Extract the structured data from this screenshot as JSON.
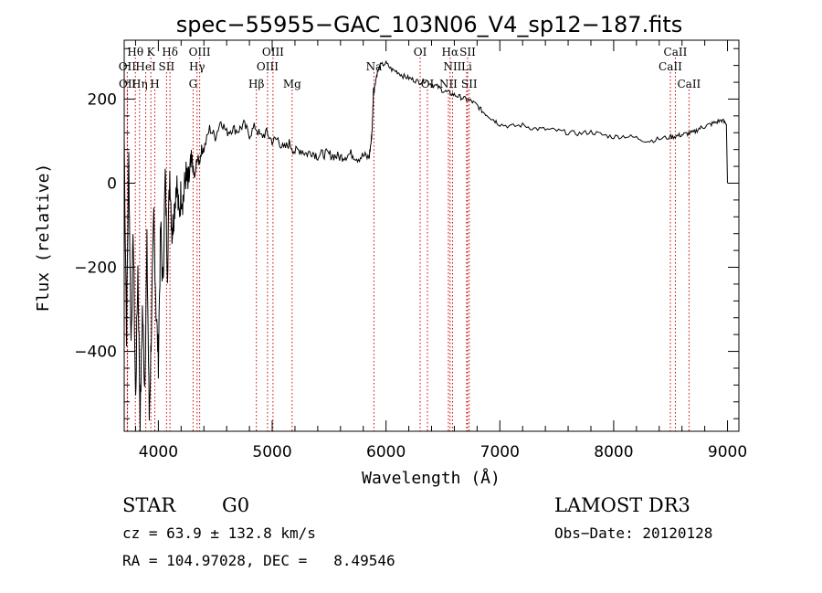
{
  "chart_data": {
    "type": "line",
    "title": "spec−55955−GAC_103N06_V4_sp12−187.fits",
    "xlabel": "Wavelength (Å)",
    "ylabel": "Flux (relative)",
    "xlim": [
      3700,
      9100
    ],
    "ylim": [
      -590,
      340
    ],
    "x_ticks": [
      4000,
      5000,
      6000,
      7000,
      8000,
      9000
    ],
    "x_tick_labels": [
      "4000",
      "5000",
      "6000",
      "7000",
      "8000",
      "9000"
    ],
    "y_ticks": [
      -400,
      -200,
      0,
      200
    ],
    "y_tick_labels": [
      "−400",
      "−200",
      "0",
      "200"
    ],
    "series": [
      {
        "name": "flux",
        "x": [
          3700,
          3720,
          3740,
          3760,
          3780,
          3800,
          3820,
          3840,
          3860,
          3880,
          3900,
          3920,
          3940,
          3960,
          3980,
          4000,
          4020,
          4040,
          4060,
          4080,
          4100,
          4120,
          4140,
          4160,
          4180,
          4200,
          4220,
          4240,
          4260,
          4280,
          4300,
          4320,
          4340,
          4360,
          4380,
          4400,
          4450,
          4500,
          4550,
          4600,
          4650,
          4700,
          4750,
          4800,
          4850,
          4900,
          4950,
          5000,
          5050,
          5100,
          5150,
          5200,
          5250,
          5300,
          5350,
          5400,
          5450,
          5500,
          5550,
          5600,
          5650,
          5700,
          5750,
          5800,
          5850,
          5870,
          5880,
          5890,
          5900,
          5920,
          5950,
          6000,
          6050,
          6100,
          6150,
          6200,
          6250,
          6300,
          6350,
          6400,
          6450,
          6500,
          6550,
          6600,
          6650,
          6700,
          6750,
          6800,
          6850,
          6900,
          6950,
          7000,
          7100,
          7200,
          7300,
          7400,
          7500,
          7600,
          7700,
          7800,
          7900,
          8000,
          8100,
          8200,
          8300,
          8400,
          8500,
          8550,
          8600,
          8650,
          8700,
          8750,
          8800,
          8850,
          8900,
          8950,
          8990,
          9000
        ],
        "y": [
          110,
          -350,
          60,
          -380,
          -120,
          -520,
          -200,
          -560,
          -300,
          -480,
          -150,
          -560,
          -330,
          -80,
          -300,
          -420,
          -100,
          -250,
          20,
          -200,
          30,
          -120,
          -60,
          10,
          -80,
          -20,
          -40,
          20,
          -10,
          30,
          40,
          10,
          60,
          50,
          80,
          80,
          130,
          110,
          150,
          120,
          130,
          125,
          140,
          115,
          135,
          110,
          120,
          100,
          105,
          80,
          95,
          75,
          80,
          70,
          75,
          65,
          70,
          68,
          65,
          62,
          66,
          70,
          60,
          65,
          60,
          100,
          140,
          220,
          230,
          260,
          280,
          285,
          270,
          265,
          255,
          250,
          245,
          240,
          245,
          235,
          230,
          220,
          215,
          210,
          205,
          200,
          195,
          185,
          170,
          160,
          150,
          140,
          135,
          138,
          130,
          128,
          125,
          120,
          118,
          122,
          115,
          110,
          112,
          108,
          100,
          105,
          110,
          112,
          115,
          118,
          120,
          130,
          135,
          140,
          145,
          150,
          140,
          0
        ]
      }
    ],
    "line_labels": [
      {
        "label": "Hθ",
        "wavelength": 3798,
        "row": 1
      },
      {
        "label": "OII",
        "wavelength": 3727,
        "row": 2
      },
      {
        "label": "OII",
        "wavelength": 3729,
        "row": 3
      },
      {
        "label": "K",
        "wavelength": 3934,
        "row": 1
      },
      {
        "label": "HeI",
        "wavelength": 3889,
        "row": 2
      },
      {
        "label": "Hη",
        "wavelength": 3835,
        "row": 3
      },
      {
        "label": "Hδ",
        "wavelength": 4102,
        "row": 1
      },
      {
        "label": "SII",
        "wavelength": 4072,
        "row": 2
      },
      {
        "label": "H",
        "wavelength": 3969,
        "row": 3
      },
      {
        "label": "OIII",
        "wavelength": 4363,
        "row": 1
      },
      {
        "label": "Hγ",
        "wavelength": 4340,
        "row": 2
      },
      {
        "label": "G",
        "wavelength": 4305,
        "row": 3
      },
      {
        "label": "OIII",
        "wavelength": 5007,
        "row": 1
      },
      {
        "label": "OIII",
        "wavelength": 4959,
        "row": 2
      },
      {
        "label": "Hβ",
        "wavelength": 4861,
        "row": 3
      },
      {
        "label": "Mg",
        "wavelength": 5175,
        "row": 3
      },
      {
        "label": "Na",
        "wavelength": 5894,
        "row": 2
      },
      {
        "label": "OI",
        "wavelength": 6300,
        "row": 1
      },
      {
        "label": "OI",
        "wavelength": 6364,
        "row": 3
      },
      {
        "label": "Hα",
        "wavelength": 6563,
        "row": 1
      },
      {
        "label": "SII",
        "wavelength": 6717,
        "row": 1
      },
      {
        "label": "NII",
        "wavelength": 6584,
        "row": 2
      },
      {
        "label": "Li",
        "wavelength": 6708,
        "row": 2
      },
      {
        "label": "NII",
        "wavelength": 6548,
        "row": 3
      },
      {
        "label": "SII",
        "wavelength": 6731,
        "row": 3
      },
      {
        "label": "CaII",
        "wavelength": 8542,
        "row": 1
      },
      {
        "label": "CaII",
        "wavelength": 8498,
        "row": 2
      },
      {
        "label": "CaII",
        "wavelength": 8662,
        "row": 3
      }
    ]
  },
  "info": {
    "class_label": "STAR",
    "subclass": "G0",
    "survey": "LAMOST DR3",
    "cz": "cz = 63.9 ± 132.8 km/s",
    "obs_date": "Obs−Date: 20120128",
    "coords": "RA = 104.97028, DEC =   8.49546"
  },
  "colors": {
    "line": "#000000",
    "marker": "#cc0000",
    "background": "#ffffff"
  }
}
